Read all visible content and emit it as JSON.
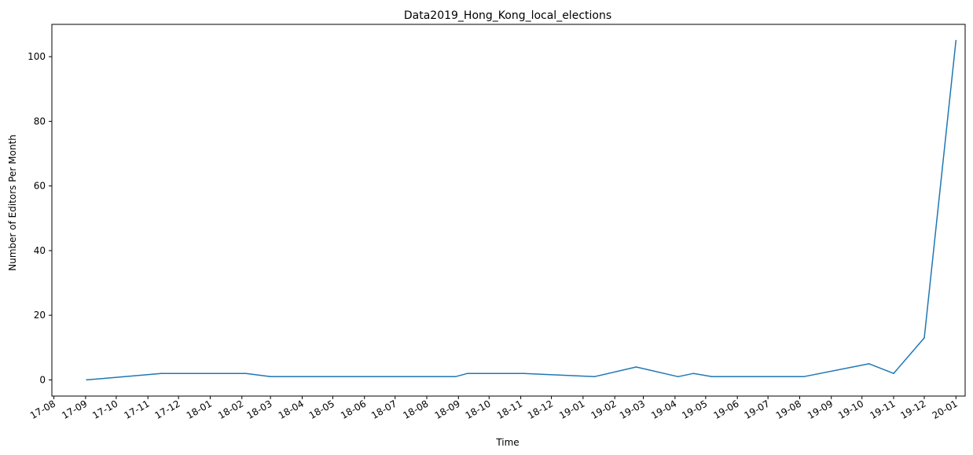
{
  "chart_data": {
    "type": "line",
    "title": "Data2019_Hong_Kong_local_elections",
    "xlabel": "Time",
    "ylabel": "Number of Editors Per Month",
    "ylim": [
      -5,
      110
    ],
    "xlim": [
      "2017-07-30",
      "2020-01-10"
    ],
    "grid": false,
    "legend": "none",
    "x_tick_labels": [
      "17-08",
      "17-09",
      "17-10",
      "17-11",
      "17-12",
      "18-01",
      "18-02",
      "18-03",
      "18-04",
      "18-05",
      "18-06",
      "18-07",
      "18-08",
      "18-09",
      "18-10",
      "18-11",
      "18-12",
      "19-01",
      "19-02",
      "19-03",
      "19-04",
      "19-05",
      "19-06",
      "19-07",
      "19-08",
      "19-09",
      "19-10",
      "19-11",
      "19-12",
      "20-01"
    ],
    "x_ticks": [
      "2017-08-01",
      "2017-09-01",
      "2017-10-01",
      "2017-11-01",
      "2017-12-01",
      "2018-01-01",
      "2018-02-01",
      "2018-03-01",
      "2018-04-01",
      "2018-05-01",
      "2018-06-01",
      "2018-07-01",
      "2018-08-01",
      "2018-09-01",
      "2018-10-01",
      "2018-11-01",
      "2018-12-01",
      "2019-01-01",
      "2019-02-01",
      "2019-03-01",
      "2019-04-01",
      "2019-05-01",
      "2019-06-01",
      "2019-07-01",
      "2019-08-01",
      "2019-09-01",
      "2019-10-01",
      "2019-11-01",
      "2019-12-01",
      "2020-01-01"
    ],
    "y_ticks": [
      0,
      20,
      40,
      60,
      80,
      100
    ],
    "series": [
      {
        "color": "#1f77b4",
        "x": [
          "2017-09-02",
          "2017-11-14",
          "2018-02-05",
          "2018-03-01",
          "2018-08-29",
          "2018-09-10",
          "2018-11-04",
          "2019-01-12",
          "2019-02-22",
          "2019-04-04",
          "2019-04-19",
          "2019-05-07",
          "2019-08-05",
          "2019-10-08",
          "2019-11-01",
          "2019-12-01",
          "2020-01-01"
        ],
        "y": [
          0,
          2,
          2,
          1,
          1,
          2,
          2,
          1,
          4,
          1,
          2,
          1,
          1,
          5,
          2,
          13,
          105
        ]
      }
    ]
  }
}
